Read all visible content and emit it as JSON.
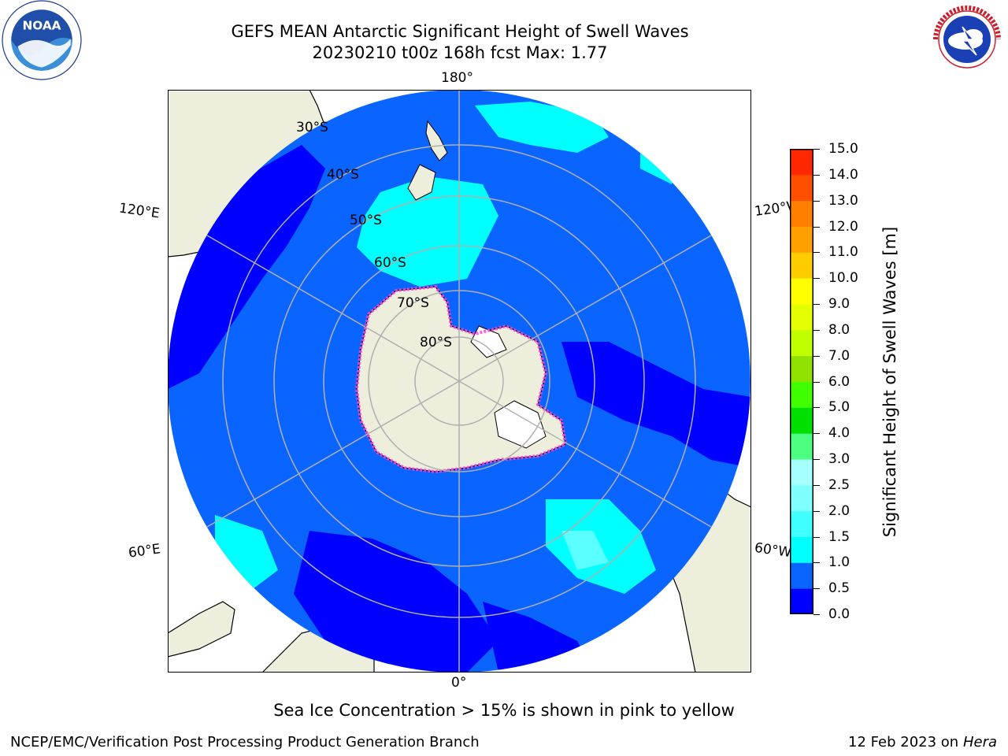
{
  "header": {
    "title_line1": "GEFS MEAN Antarctic Significant Height of Swell Waves",
    "title_line2": "20230210 t00z 168h fcst   Max: 1.77",
    "noaa_logo_text": "NOAA",
    "noaa_logo_ring_text": "NATIONAL OCEANIC AND ATMOSPHERIC ADMINISTRATION · U.S. DEPARTMENT OF COMMERCE",
    "nws_logo_ring_text": "NATIONAL WEATHER SERVICE"
  },
  "map": {
    "projection": "south polar stereographic",
    "longitude_labels": {
      "top": "180°",
      "bottom": "0°",
      "upper_left": "120°E",
      "upper_right": "120°W",
      "lower_left": "60°E",
      "lower_right": "60°W"
    },
    "latitude_labels": [
      "30°S",
      "40°S",
      "50°S",
      "60°S",
      "70°S",
      "80°S"
    ]
  },
  "colorbar": {
    "label": "Significant Height of Swell Waves [m]",
    "ticks": [
      "0.0",
      "0.5",
      "1.0",
      "1.5",
      "2.0",
      "2.5",
      "3.0",
      "4.0",
      "5.0",
      "6.0",
      "7.0",
      "8.0",
      "9.0",
      "10.0",
      "11.0",
      "12.0",
      "13.0",
      "14.0",
      "15.0"
    ],
    "colors": [
      "#0000ff",
      "#0a64ff",
      "#00ffff",
      "#40ffff",
      "#80ffff",
      "#a6ffff",
      "#4dff80",
      "#00e000",
      "#40ff00",
      "#90e000",
      "#c0ff00",
      "#e6ff00",
      "#ffff00",
      "#ffcc00",
      "#ffa000",
      "#ff8000",
      "#ff5000",
      "#ff2800"
    ]
  },
  "footer": {
    "note": "Sea Ice Concentration > 15% is shown in pink to yellow",
    "credit": "NCEP/EMC/Verification Post Processing Product Generation Branch",
    "date": "12 Feb 2023 on",
    "host": "Hera"
  }
}
